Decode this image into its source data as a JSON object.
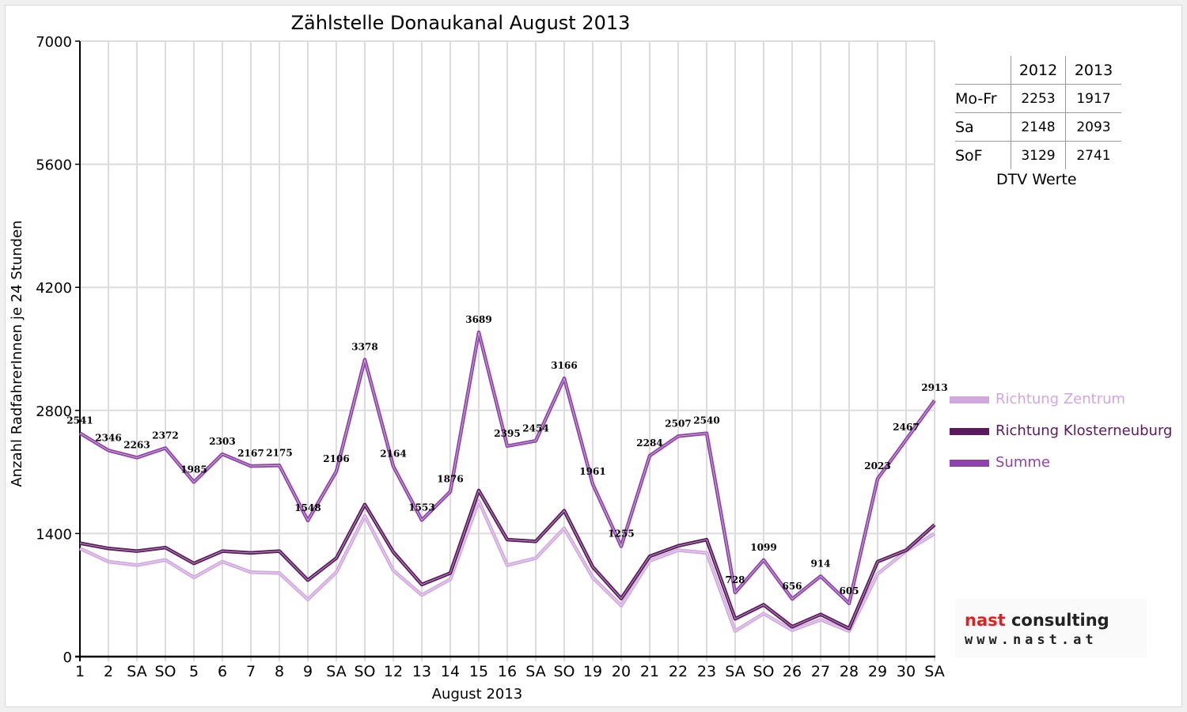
{
  "chart_data": {
    "type": "line",
    "title": "Zählstelle Donaukanal August 2013",
    "xlabel": "August 2013",
    "ylabel": "Anzahl RadfahrerInnen je 24 Stunden",
    "ylim": [
      0,
      7000
    ],
    "yticks": [
      0,
      1400,
      2800,
      4200,
      5600,
      7000
    ],
    "grid": true,
    "legend_position": "right",
    "categories": [
      "1",
      "2",
      "SA",
      "SO",
      "5",
      "6",
      "7",
      "8",
      "9",
      "SA",
      "SO",
      "12",
      "13",
      "14",
      "15",
      "16",
      "SA",
      "SO",
      "19",
      "20",
      "21",
      "22",
      "23",
      "SA",
      "SO",
      "26",
      "27",
      "28",
      "29",
      "30",
      "SA"
    ],
    "highlighted_categories": [
      3,
      10,
      14,
      17,
      24
    ],
    "highlight_color": "#e00000",
    "series": [
      {
        "name": "Richtung Zentrum",
        "color": "#d0a8de",
        "values": [
          1230,
          1080,
          1040,
          1100,
          900,
          1080,
          960,
          950,
          650,
          960,
          1600,
          980,
          700,
          880,
          1770,
          1040,
          1120,
          1460,
          900,
          580,
          1090,
          1210,
          1180,
          290,
          490,
          300,
          420,
          290,
          940,
          1200,
          1400
        ]
      },
      {
        "name": "Richtung Klosterneuburg",
        "color": "#5a1a5e",
        "values": [
          1290,
          1230,
          1200,
          1240,
          1060,
          1200,
          1180,
          1200,
          870,
          1120,
          1730,
          1190,
          820,
          950,
          1890,
          1330,
          1310,
          1660,
          1020,
          660,
          1140,
          1260,
          1330,
          430,
          590,
          340,
          480,
          320,
          1080,
          1210,
          1500
        ]
      },
      {
        "name": "Summe",
        "color": "#8e44a6",
        "values": [
          2541,
          2346,
          2263,
          2372,
          1985,
          2303,
          2167,
          2175,
          1548,
          2106,
          3378,
          2164,
          1553,
          1876,
          3689,
          2395,
          2454,
          3166,
          1961,
          1255,
          2284,
          2507,
          2540,
          728,
          1099,
          656,
          914,
          605,
          2023,
          2467,
          2913
        ]
      }
    ],
    "data_labels": [
      "2541",
      "2346",
      "2263",
      "2372",
      "1985",
      "2303",
      "2167",
      "2175",
      "1548",
      "2106",
      "3378",
      "2164",
      "1553",
      "1876",
      "3689",
      "2395",
      "2454",
      "3166",
      "1961",
      "1255",
      "2284",
      "2507",
      "2540",
      "728",
      "1099",
      "656",
      "914",
      "605",
      "2023",
      "2467",
      "2913"
    ]
  },
  "dtv_table": {
    "headers": [
      "2012",
      "2013"
    ],
    "rows": [
      {
        "label": "Mo-Fr",
        "v2012": "2253",
        "v2013": "1917"
      },
      {
        "label": "Sa",
        "v2012": "2148",
        "v2013": "2093"
      },
      {
        "label": "SoF",
        "v2012": "3129",
        "v2013": "2741"
      }
    ],
    "caption": "DTV Werte"
  },
  "logo": {
    "word1": "nast",
    "word2": "consulting",
    "url": "www.nast.at"
  }
}
